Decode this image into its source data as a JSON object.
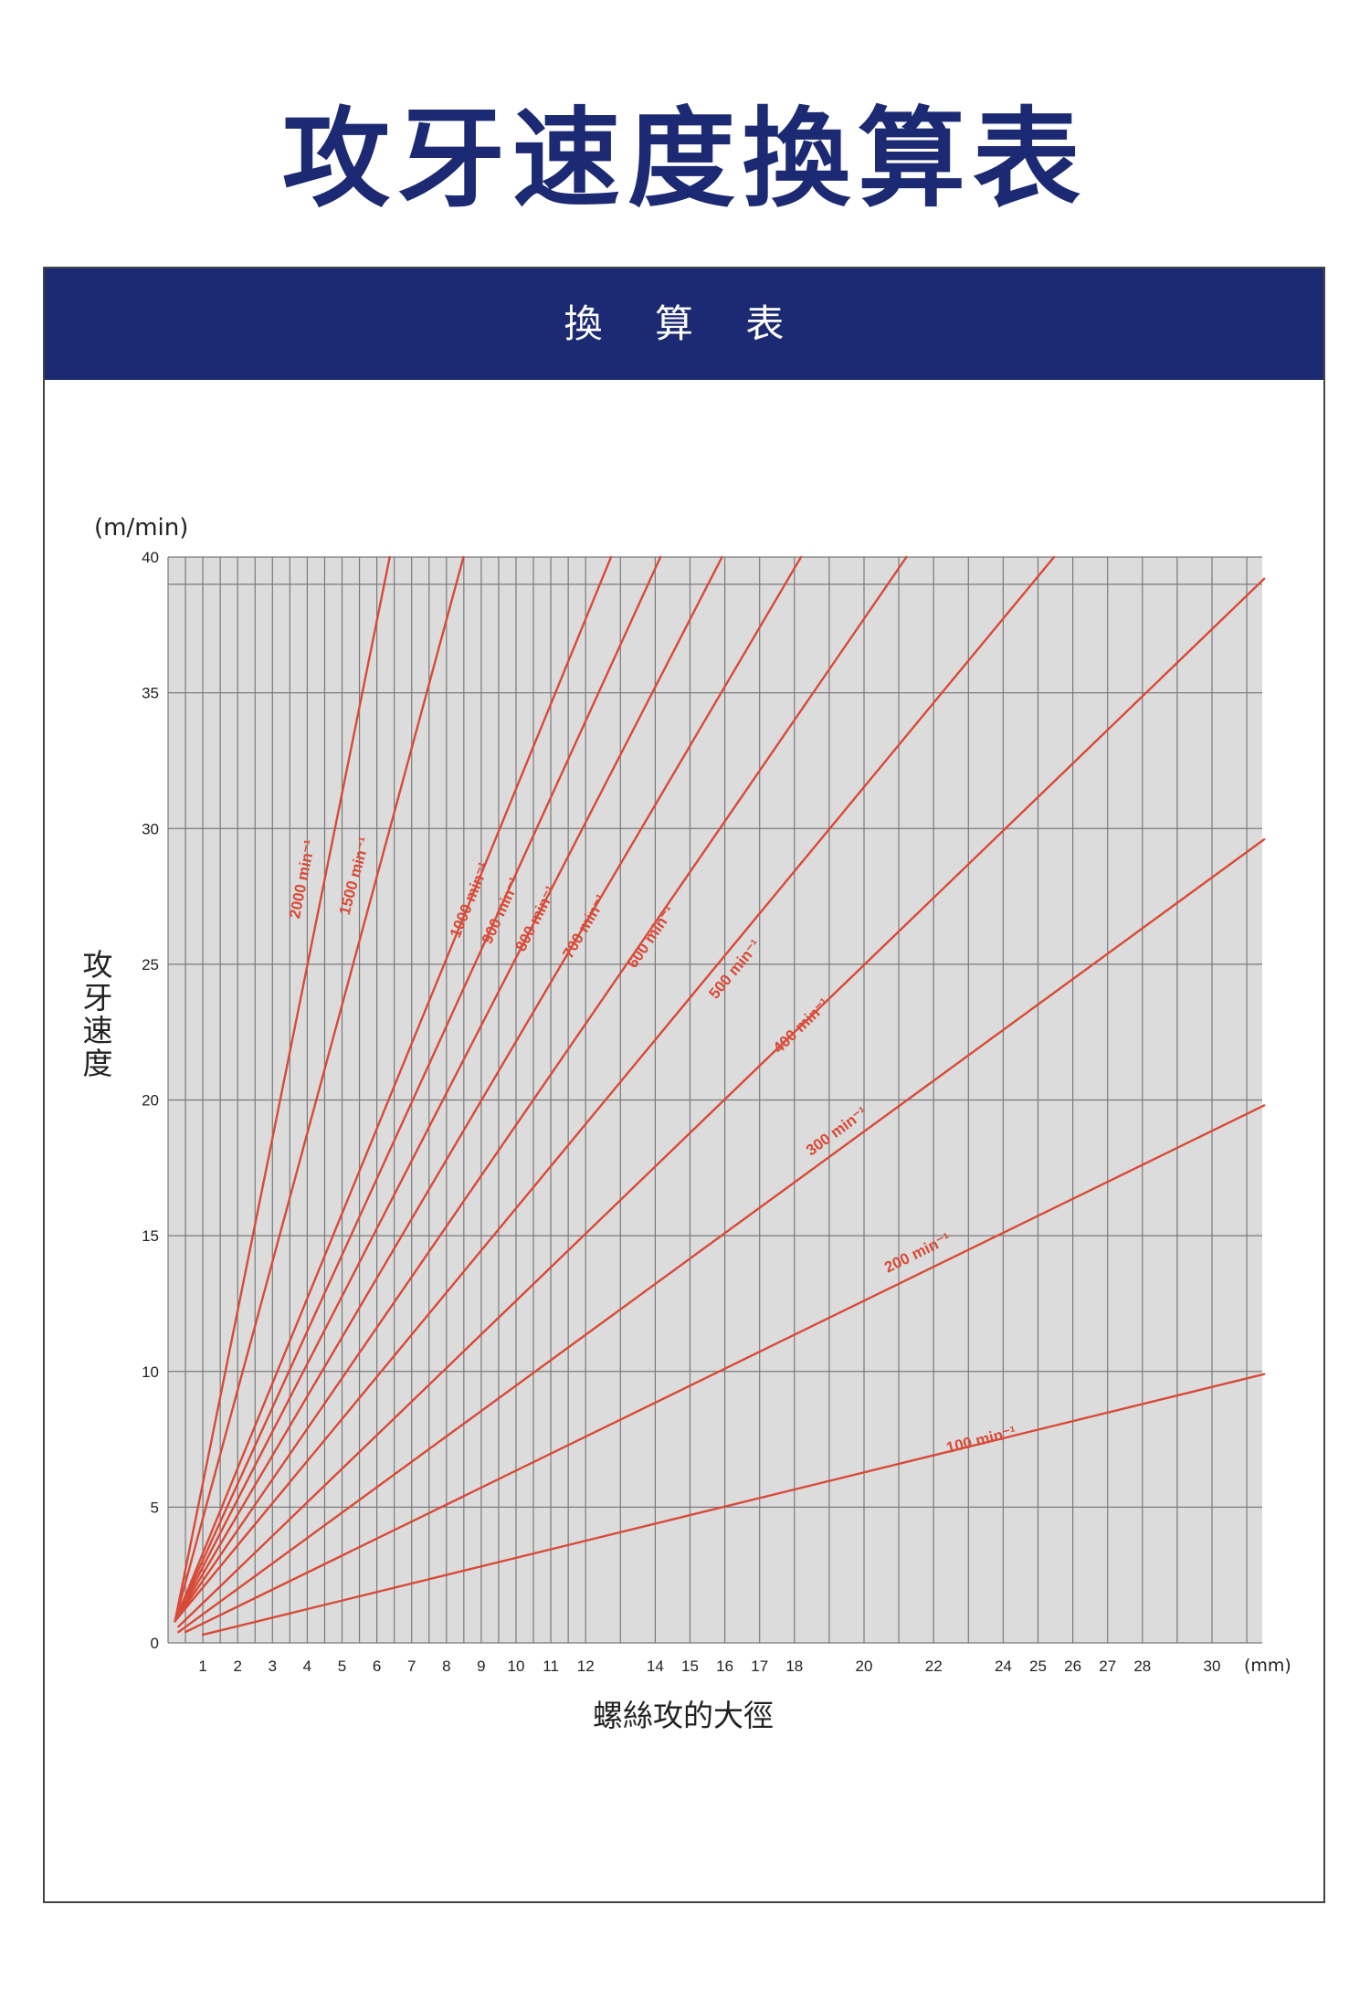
{
  "page_title": "攻牙速度換算表",
  "panel_header": "換 算 表",
  "colors": {
    "brand": "#1c2a73",
    "line": "#d94a38",
    "plot_bg": "#dcdcdc",
    "grid": "#7a7a7a"
  },
  "chart_data": {
    "type": "line",
    "title": "",
    "ylabel": "攻牙速度",
    "yunit": "(m/min)",
    "xlabel": "螺絲攻的大徑",
    "xunit": "(mm)",
    "xlim": [
      0,
      31.5
    ],
    "ylim": [
      0,
      40
    ],
    "grid": true,
    "x_ticks": [
      1,
      2,
      3,
      4,
      5,
      6,
      7,
      8,
      9,
      10,
      11,
      12,
      14,
      15,
      16,
      17,
      18,
      20,
      22,
      24,
      25,
      26,
      27,
      28,
      30
    ],
    "x_minor_grid": [
      0.5,
      1.5,
      2.5,
      3.5,
      4.5,
      5.5,
      6.5,
      7.5,
      8.5,
      9.5,
      10.5,
      11.5,
      13,
      19,
      21,
      23,
      29,
      31
    ],
    "y_ticks": [
      0,
      5,
      10,
      15,
      20,
      25,
      30,
      35,
      40
    ],
    "y_minor_grid": [
      39
    ],
    "series": [
      {
        "name": "2000 min⁻¹",
        "rpm": 2000,
        "x": [
          0.2,
          6.37
        ],
        "y": [
          0.8,
          40
        ]
      },
      {
        "name": "1500 min⁻¹",
        "rpm": 1500,
        "x": [
          0.2,
          8.49
        ],
        "y": [
          0.8,
          40
        ]
      },
      {
        "name": "1000 min⁻¹",
        "rpm": 1000,
        "x": [
          0.2,
          12.73
        ],
        "y": [
          0.8,
          40
        ]
      },
      {
        "name": "900 min⁻¹",
        "rpm": 900,
        "x": [
          0.2,
          14.15
        ],
        "y": [
          0.8,
          40
        ]
      },
      {
        "name": "800 min⁻¹",
        "rpm": 800,
        "x": [
          0.2,
          15.92
        ],
        "y": [
          0.8,
          40
        ]
      },
      {
        "name": "700 min⁻¹",
        "rpm": 700,
        "x": [
          0.2,
          18.19
        ],
        "y": [
          0.8,
          40
        ]
      },
      {
        "name": "600 min⁻¹",
        "rpm": 600,
        "x": [
          0.2,
          21.22
        ],
        "y": [
          0.8,
          40
        ]
      },
      {
        "name": "500 min⁻¹",
        "rpm": 500,
        "x": [
          0.2,
          25.46
        ],
        "y": [
          0.8,
          40
        ]
      },
      {
        "name": "400 min⁻¹",
        "rpm": 400,
        "x": [
          0.3,
          31.5
        ],
        "y": [
          0.6,
          39.2
        ]
      },
      {
        "name": "300 min⁻¹",
        "rpm": 300,
        "x": [
          0.3,
          31.5
        ],
        "y": [
          0.4,
          29.6
        ]
      },
      {
        "name": "200 min⁻¹",
        "rpm": 200,
        "x": [
          0.5,
          31.5
        ],
        "y": [
          0.4,
          19.8
        ]
      },
      {
        "name": "100 min⁻¹",
        "rpm": 100,
        "x": [
          1,
          31.5
        ],
        "y": [
          0.3,
          9.9
        ]
      }
    ],
    "line_labels": [
      {
        "text": "2000 min⁻¹",
        "x": 4.0,
        "y": 28.1
      },
      {
        "text": "1500 min⁻¹",
        "x": 5.5,
        "y": 28.2
      },
      {
        "text": "1000 min⁻¹",
        "x": 8.8,
        "y": 27.3
      },
      {
        "text": "900 min⁻¹",
        "x": 9.7,
        "y": 26.9
      },
      {
        "text": "800 min⁻¹",
        "x": 10.7,
        "y": 26.6
      },
      {
        "text": "700 min⁻¹",
        "x": 12.1,
        "y": 26.3
      },
      {
        "text": "600 min⁻¹",
        "x": 14.0,
        "y": 25.9
      },
      {
        "text": "500 min⁻¹",
        "x": 16.4,
        "y": 24.7
      },
      {
        "text": "400 min⁻¹",
        "x": 18.3,
        "y": 22.6
      },
      {
        "text": "300 min⁻¹",
        "x": 19.3,
        "y": 18.7
      },
      {
        "text": "200 min⁻¹",
        "x": 21.6,
        "y": 14.2
      },
      {
        "text": "100 min⁻¹",
        "x": 23.4,
        "y": 7.3
      }
    ]
  }
}
